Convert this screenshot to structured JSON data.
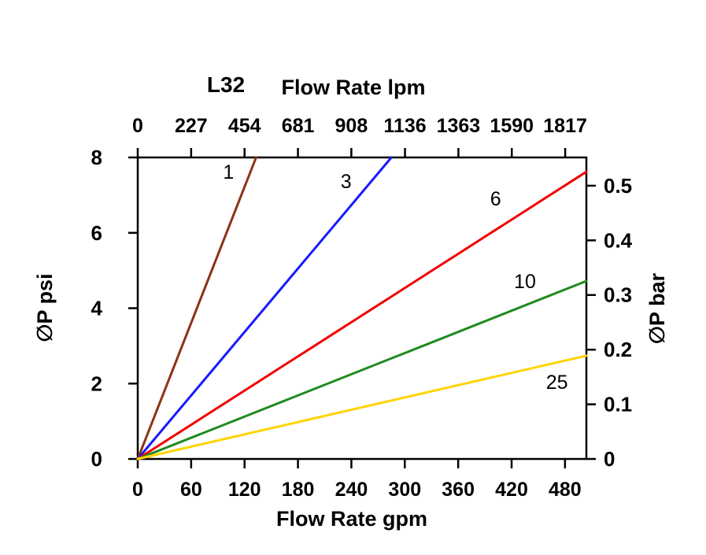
{
  "page": {
    "background": "#ffffff"
  },
  "chart_data": {
    "type": "line",
    "model": "L32",
    "title_top_axis": "Flow Rate lpm",
    "xlabel_bottom": "Flow Rate gpm",
    "ylabel_left": "∅P psi",
    "ylabel_right": "∅P bar",
    "grid": false,
    "legend": "inline-curve-labels",
    "axis_color": "#000000",
    "x_bottom": {
      "label": "Flow Rate gpm",
      "range": [
        0,
        504
      ],
      "ticks": [
        0,
        60,
        120,
        180,
        240,
        300,
        360,
        420,
        480
      ]
    },
    "x_top": {
      "label": "Flow Rate lpm",
      "range": [
        0,
        1907
      ],
      "ticks": [
        0,
        227,
        454,
        681,
        908,
        1136,
        1363,
        1590,
        1817
      ]
    },
    "y_left": {
      "label": "∅P psi",
      "range": [
        0,
        8
      ],
      "ticks": [
        0,
        2,
        4,
        6,
        8
      ]
    },
    "y_right": {
      "label": "∅P bar",
      "range": [
        0,
        0.5517
      ],
      "ticks": [
        0,
        0.1,
        0.2,
        0.3,
        0.4,
        0.5
      ]
    },
    "series": [
      {
        "name": "1",
        "color": "#8c3313",
        "points": [
          [
            0,
            0
          ],
          [
            133,
            8
          ]
        ],
        "label_at": [
          102,
          7.44
        ]
      },
      {
        "name": "3",
        "color": "#1a1aff",
        "points": [
          [
            0,
            0
          ],
          [
            285,
            8
          ]
        ],
        "label_at": [
          234,
          7.19
        ]
      },
      {
        "name": "6",
        "color": "#f30000",
        "points": [
          [
            0,
            0
          ],
          [
            504,
            7.62
          ]
        ],
        "label_at": [
          402,
          6.73
        ]
      },
      {
        "name": "10",
        "color": "#1e8a1e",
        "points": [
          [
            0,
            0
          ],
          [
            504,
            4.72
          ]
        ],
        "label_at": [
          435,
          4.53
        ]
      },
      {
        "name": "25",
        "color": "#ffd400",
        "points": [
          [
            0,
            0
          ],
          [
            504,
            2.74
          ]
        ],
        "label_at": [
          471,
          1.86
        ]
      }
    ]
  }
}
